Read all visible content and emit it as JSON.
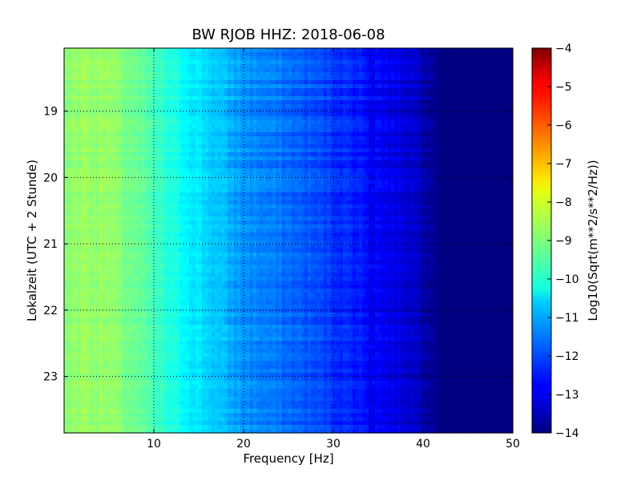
{
  "chart_data": {
    "type": "heatmap",
    "title": "BW RJOB HHZ: 2018-06-08",
    "xlabel": "Frequency [Hz]",
    "ylabel": "Lokalzeit (UTC + 2 Stunde)",
    "colorbar_label": "Log10(Sqrt(m**2/s**2/Hz))",
    "xlim": [
      0,
      50
    ],
    "ylim": [
      18.05,
      23.85
    ],
    "y_inverted": true,
    "x_ticks": [
      10,
      20,
      30,
      40,
      50
    ],
    "x_tick_labels": [
      "10",
      "20",
      "30",
      "40",
      "50"
    ],
    "y_ticks": [
      19,
      20,
      21,
      22,
      23
    ],
    "y_tick_labels": [
      "19",
      "20",
      "21",
      "22",
      "23"
    ],
    "clim": [
      -14,
      -4
    ],
    "colorbar_ticks": [
      -4,
      -5,
      -6,
      -7,
      -8,
      -9,
      -10,
      -11,
      -12,
      -13,
      -14
    ],
    "colorbar_tick_labels": [
      "−4",
      "−5",
      "−6",
      "−7",
      "−8",
      "−9",
      "−10",
      "−11",
      "−12",
      "−13",
      "−14"
    ],
    "colormap": "jet",
    "grid": true,
    "spectrum_profile": {
      "frequency_hz": [
        0,
        2,
        5,
        8,
        10,
        12,
        15,
        17,
        20,
        25,
        30,
        33,
        36,
        38,
        40,
        42,
        45,
        50
      ],
      "level": [
        -8.9,
        -8.7,
        -8.8,
        -9.2,
        -9.6,
        -10.0,
        -10.5,
        -10.8,
        -11.3,
        -11.7,
        -12.2,
        -12.5,
        -12.9,
        -13.1,
        -13.4,
        -14.0,
        -14.0,
        -14.0
      ]
    },
    "peak_line_hz": 34.3,
    "peak_level": -13.0
  }
}
